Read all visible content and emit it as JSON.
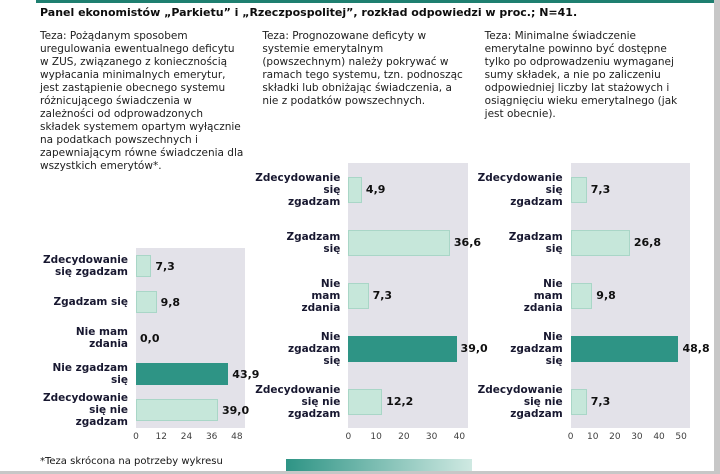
{
  "page": {
    "title": "Panel ekonomistów „Parkietu” i „Rzeczpospolitej”, rozkład odpowiedzi w proc.; N=41.",
    "footnote": "*Teza skrócona na potrzeby wykresu"
  },
  "colors": {
    "accent": "#1e7f70",
    "bar_light": "#c6e7da",
    "bar_dark": "#2e9485",
    "plot_bg": "#e3e2e9"
  },
  "columns": [
    {
      "thesis": "Teza: Pożądanym sposobem uregulowania ewentualnego deficytu w ZUS, związanego z koniecznością wypłacania minimalnych emerytur, jest zastąpienie obecnego systemu różnicującego świadczenia w zależności od odprowadzonych składek systemem opartym wyłącznie na podatkach powszechnych i zapewniającym równe świadczenia dla wszystkich emerytów*."
    },
    {
      "thesis": "Teza: Prognozowane deficyty w systemie emerytalnym (powszechnym) należy pokrywać w ramach tego systemu, tzn. podnosząc składki lub obniżając świadczenia, a nie z podatków powszechnych."
    },
    {
      "thesis": "Teza: Minimalne świadczenie emerytalne powinno być dostępne tylko po odprowadzeniu wymaganej sumy składek, a nie po zaliczeniu odpowiedniej liczby lat stażowych i osiągnięciu wieku emerytalnego (jak jest obecnie)."
    }
  ],
  "chart_data": [
    {
      "type": "bar",
      "orientation": "horizontal",
      "title": "",
      "categories": [
        "Zdecydowanie się zgadzam",
        "Zgadzam się",
        "Nie mam zdania",
        "Nie zgadzam się",
        "Zdecydowanie się nie zgadzam"
      ],
      "category_lines": [
        "Zdecydowanie\nsię zgadzam",
        "Zgadzam się",
        "Nie mam zdania",
        "Nie zgadzam się",
        "Zdecydowanie\nsię nie zgadzam"
      ],
      "values": [
        7.3,
        9.8,
        0.0,
        43.9,
        39.0
      ],
      "value_labels": [
        "7,3",
        "9,8",
        "0,0",
        "43,9",
        "39,0"
      ],
      "highlight_index": 3,
      "ticks": [
        0,
        12,
        24,
        36,
        48
      ],
      "xlim": [
        0,
        52
      ],
      "grid": false,
      "legend": "none"
    },
    {
      "type": "bar",
      "orientation": "horizontal",
      "title": "",
      "categories": [
        "Zdecydowanie się zgadzam",
        "Zgadzam się",
        "Nie mam zdania",
        "Nie zgadzam się",
        "Zdecydowanie się nie zgadzam"
      ],
      "category_lines": [
        "Zdecydowanie\nsię\nzgadzam",
        "Zgadzam\nsię",
        "Nie\nmam\nzdania",
        "Nie\nzgadzam\nsię",
        "Zdecydowanie\nsię nie\nzgadzam"
      ],
      "values": [
        4.9,
        36.6,
        7.3,
        39.0,
        12.2
      ],
      "value_labels": [
        "4,9",
        "36,6",
        "7,3",
        "39,0",
        "12,2"
      ],
      "highlight_index": 3,
      "ticks": [
        0,
        10,
        20,
        30,
        40
      ],
      "xlim": [
        0,
        43
      ],
      "grid": false,
      "legend": "none"
    },
    {
      "type": "bar",
      "orientation": "horizontal",
      "title": "",
      "categories": [
        "Zdecydowanie się zgadzam",
        "Zgadzam się",
        "Nie mam zdania",
        "Nie zgadzam się",
        "Zdecydowanie się nie zgadzam"
      ],
      "category_lines": [
        "Zdecydowanie\nsię\nzgadzam",
        "Zgadzam\nsię",
        "Nie\nmam\nzdania",
        "Nie\nzgadzam\nsię",
        "Zdecydowanie\nsię nie\nzgadzam"
      ],
      "values": [
        7.3,
        26.8,
        9.8,
        48.8,
        7.3
      ],
      "value_labels": [
        "7,3",
        "26,8",
        "9,8",
        "48,8",
        "7,3"
      ],
      "highlight_index": 3,
      "ticks": [
        0,
        10,
        20,
        30,
        40,
        50
      ],
      "xlim": [
        0,
        54
      ],
      "grid": false,
      "legend": "none"
    }
  ]
}
